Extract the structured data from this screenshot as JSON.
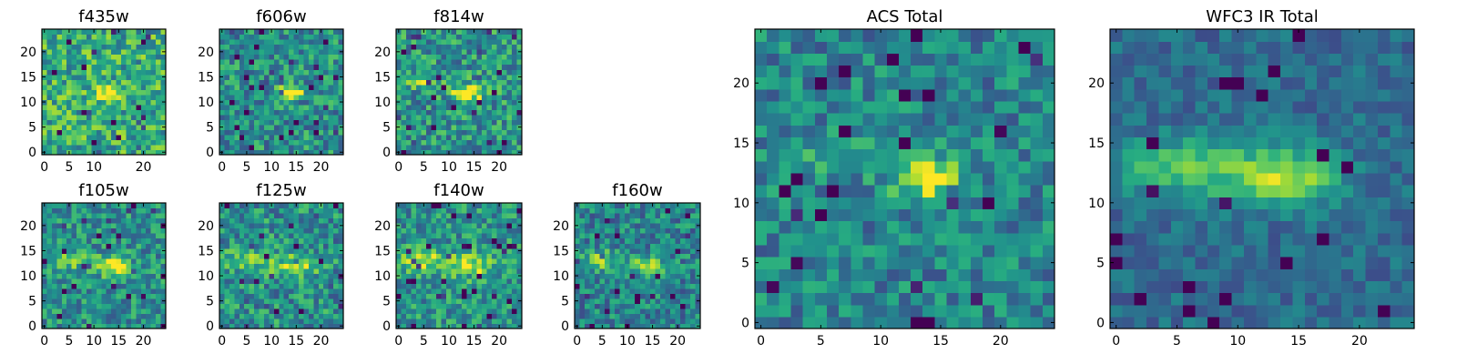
{
  "chart_data": {
    "type": "heatmap",
    "colormap": "viridis",
    "grid_size": 25,
    "panels": [
      {
        "title": "f435w",
        "xticks": [
          0,
          5,
          10,
          15,
          20
        ],
        "yticks": [
          0,
          5,
          10,
          15,
          20
        ],
        "xticks_shown": [
          0,
          5,
          10,
          20
        ],
        "yticks_shown": [
          0,
          5,
          10,
          15,
          20
        ],
        "xlim": [
          0,
          25
        ],
        "ylim": [
          0,
          25
        ],
        "noise": 0.26,
        "blobs": [
          {
            "x": 13,
            "y": 12,
            "sx": 1.6,
            "sy": 0.9,
            "a": 0.55
          }
        ],
        "base": 0.62,
        "seed": 11
      },
      {
        "title": "f606w",
        "xticks": [
          0,
          5,
          10,
          15,
          20
        ],
        "yticks": [
          0,
          5,
          10,
          15,
          20
        ],
        "xticks_shown": [
          0,
          5,
          10,
          15,
          20
        ],
        "yticks_shown": [
          0,
          5,
          10,
          15,
          20
        ],
        "xlim": [
          0,
          25
        ],
        "ylim": [
          0,
          25
        ],
        "noise": 0.24,
        "blobs": [
          {
            "x": 14,
            "y": 12,
            "sx": 1.8,
            "sy": 0.9,
            "a": 0.6
          }
        ],
        "base": 0.5,
        "seed": 23
      },
      {
        "title": "f814w",
        "xticks": [
          0,
          5,
          10,
          15,
          20
        ],
        "yticks": [
          0,
          5,
          10,
          15,
          20
        ],
        "xticks_shown": [
          0,
          5,
          10,
          15,
          20
        ],
        "yticks_shown": [
          0,
          5,
          10,
          15,
          20
        ],
        "xlim": [
          0,
          25
        ],
        "ylim": [
          0,
          25
        ],
        "noise": 0.25,
        "blobs": [
          {
            "x": 14,
            "y": 12,
            "sx": 2.2,
            "sy": 1.2,
            "a": 0.55
          },
          {
            "x": 5,
            "y": 14,
            "sx": 2.5,
            "sy": 1.0,
            "a": 0.25
          }
        ],
        "base": 0.52,
        "seed": 37
      },
      {
        "title": "f105w",
        "xticks": [
          0,
          5,
          10,
          15,
          20
        ],
        "yticks": [
          0,
          5,
          10,
          15,
          20
        ],
        "xticks_shown": [
          0,
          5,
          10,
          15,
          20
        ],
        "yticks_shown": [
          0,
          5,
          10,
          15,
          20
        ],
        "xlim": [
          0,
          25
        ],
        "ylim": [
          0,
          25
        ],
        "noise": 0.22,
        "blobs": [
          {
            "x": 14,
            "y": 12,
            "sx": 2.2,
            "sy": 1.3,
            "a": 0.55
          },
          {
            "x": 5,
            "y": 13,
            "sx": 3.0,
            "sy": 1.2,
            "a": 0.25
          }
        ],
        "base": 0.5,
        "seed": 41
      },
      {
        "title": "f125w",
        "xticks": [
          0,
          5,
          10,
          15,
          20
        ],
        "yticks": [
          0,
          5,
          10,
          15,
          20
        ],
        "xticks_shown": [
          0,
          5,
          10,
          15,
          20
        ],
        "yticks_shown": [
          0,
          5,
          10,
          15,
          20
        ],
        "xlim": [
          0,
          25
        ],
        "ylim": [
          0,
          25
        ],
        "noise": 0.24,
        "blobs": [
          {
            "x": 15,
            "y": 12,
            "sx": 3.0,
            "sy": 1.6,
            "a": 0.4
          },
          {
            "x": 5,
            "y": 13,
            "sx": 3.0,
            "sy": 1.5,
            "a": 0.3
          }
        ],
        "base": 0.5,
        "seed": 53
      },
      {
        "title": "f140w",
        "xticks": [
          0,
          5,
          10,
          15,
          20
        ],
        "yticks": [
          0,
          5,
          10,
          15,
          20
        ],
        "xticks_shown": [
          0,
          5,
          10,
          15,
          20
        ],
        "yticks_shown": [
          0,
          5,
          10,
          15,
          20
        ],
        "xlim": [
          0,
          25
        ],
        "ylim": [
          0,
          25
        ],
        "noise": 0.22,
        "blobs": [
          {
            "x": 14,
            "y": 12,
            "sx": 3.0,
            "sy": 1.5,
            "a": 0.45
          },
          {
            "x": 5,
            "y": 13,
            "sx": 3.0,
            "sy": 1.5,
            "a": 0.4
          }
        ],
        "base": 0.52,
        "seed": 67
      },
      {
        "title": "f160w",
        "xticks": [
          0,
          5,
          10,
          15,
          20
        ],
        "yticks": [
          0,
          5,
          10,
          15,
          20
        ],
        "xticks_shown": [
          0,
          5,
          10,
          15,
          20
        ],
        "yticks_shown": [
          0,
          5,
          10,
          15,
          20
        ],
        "xlim": [
          0,
          25
        ],
        "ylim": [
          0,
          25
        ],
        "noise": 0.22,
        "blobs": [
          {
            "x": 14,
            "y": 12,
            "sx": 2.5,
            "sy": 1.3,
            "a": 0.4
          },
          {
            "x": 5,
            "y": 13,
            "sx": 3.0,
            "sy": 1.4,
            "a": 0.35
          }
        ],
        "base": 0.45,
        "seed": 79
      },
      {
        "title": "ACS Total",
        "xticks": [
          0,
          5,
          10,
          15,
          20
        ],
        "yticks": [
          0,
          5,
          10,
          15,
          20
        ],
        "xticks_shown": [
          0,
          5,
          10,
          15,
          20
        ],
        "yticks_shown": [
          0,
          5,
          10,
          15,
          20
        ],
        "xlim": [
          0,
          25
        ],
        "ylim": [
          0,
          25
        ],
        "noise": 0.2,
        "blobs": [
          {
            "x": 14,
            "y": 12,
            "sx": 2.2,
            "sy": 1.1,
            "a": 0.55
          },
          {
            "x": 5,
            "y": 14,
            "sx": 2.5,
            "sy": 0.9,
            "a": 0.2
          }
        ],
        "base": 0.45,
        "seed": 97
      },
      {
        "title": "WFC3 IR Total",
        "xticks": [
          0,
          5,
          10,
          15,
          20
        ],
        "yticks": [
          0,
          5,
          10,
          15,
          20
        ],
        "xticks_shown": [
          0,
          5,
          10,
          15,
          20
        ],
        "yticks_shown": [
          0,
          5,
          10,
          15,
          20
        ],
        "xlim": [
          0,
          25
        ],
        "ylim": [
          0,
          25
        ],
        "noise": 0.12,
        "blobs": [
          {
            "x": 14,
            "y": 12,
            "sx": 3.0,
            "sy": 1.6,
            "a": 0.5
          },
          {
            "x": 6,
            "y": 13,
            "sx": 5.0,
            "sy": 1.8,
            "a": 0.35
          }
        ],
        "base": 0.35,
        "seed": 113
      }
    ]
  }
}
